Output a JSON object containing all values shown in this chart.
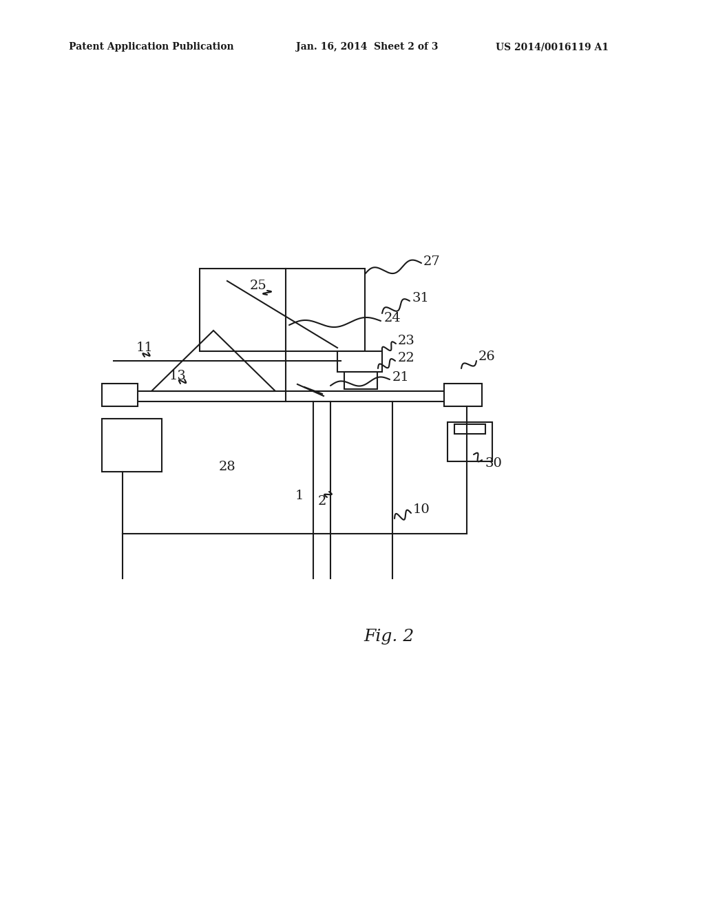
{
  "background_color": "#ffffff",
  "header_left": "Patent Application Publication",
  "header_center": "Jan. 16, 2014  Sheet 2 of 3",
  "header_right": "US 2014/0016119 A1",
  "fig_label": "Fig. 2",
  "header_fontsize": 10,
  "fig_label_fontsize": 18,
  "line_color": "#1a1a1a",
  "line_width": 1.5,
  "label_fontsize": 14
}
